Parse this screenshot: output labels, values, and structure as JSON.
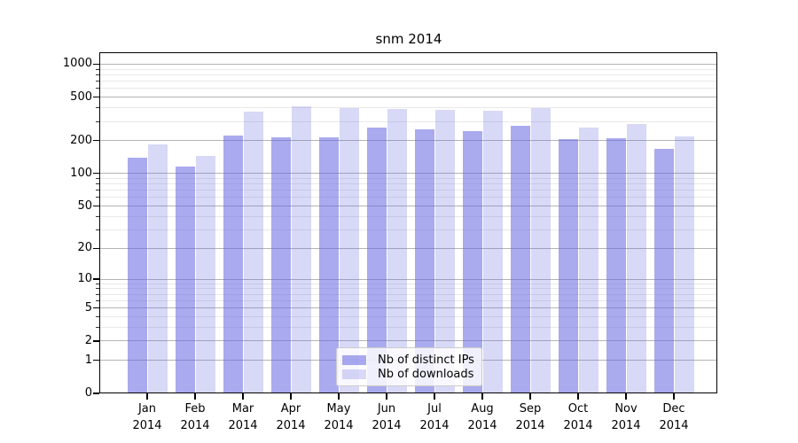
{
  "figure": {
    "title": "snm 2014"
  },
  "legend": {
    "items": [
      {
        "label": "Nb of distinct IPs"
      },
      {
        "label": "Nb of downloads"
      }
    ]
  },
  "colors": {
    "bar_base_rgb": "100,100,225",
    "dark_alpha": 0.55,
    "light_alpha": 0.25,
    "major_grid": "#b4b4b4",
    "minor_grid": "#e9e9e9",
    "spine": "#000000"
  },
  "axes": {
    "y_tick_labels": [
      "1000",
      "500",
      "200",
      "100",
      "50",
      "20",
      "10",
      "5",
      "2",
      "1",
      "0"
    ],
    "x_year_label": "2014"
  },
  "chart_data": {
    "type": "bar",
    "title": "snm 2014",
    "categories": [
      "Jan 2014",
      "Feb 2014",
      "Mar 2014",
      "Apr 2014",
      "May 2014",
      "Jun 2014",
      "Jul 2014",
      "Aug 2014",
      "Sep 2014",
      "Oct 2014",
      "Nov 2014",
      "Dec 2014"
    ],
    "months": [
      "Jan",
      "Feb",
      "Mar",
      "Apr",
      "May",
      "Jun",
      "Jul",
      "Aug",
      "Sep",
      "Oct",
      "Nov",
      "Dec"
    ],
    "year": "2014",
    "series": [
      {
        "name": "Nb of distinct IPs",
        "values": [
          140,
          115,
          225,
          215,
          213,
          265,
          255,
          245,
          275,
          207,
          210,
          170
        ]
      },
      {
        "name": "Nb of downloads",
        "values": [
          185,
          145,
          370,
          415,
          400,
          390,
          380,
          375,
          400,
          265,
          285,
          220
        ]
      }
    ],
    "yscale": "symlog (position ~ log10(1+v))",
    "y_major_ticks": [
      0,
      1,
      2,
      5,
      10,
      20,
      50,
      100,
      200,
      500,
      1000
    ],
    "y_minor_ticks": [
      3,
      4,
      6,
      7,
      8,
      9,
      30,
      40,
      60,
      70,
      80,
      90,
      300,
      400,
      600,
      700,
      800,
      900
    ],
    "ylim": [
      0,
      1285
    ],
    "xlabel": "",
    "ylabel": "",
    "grid": true,
    "legend_position": "lower center"
  }
}
